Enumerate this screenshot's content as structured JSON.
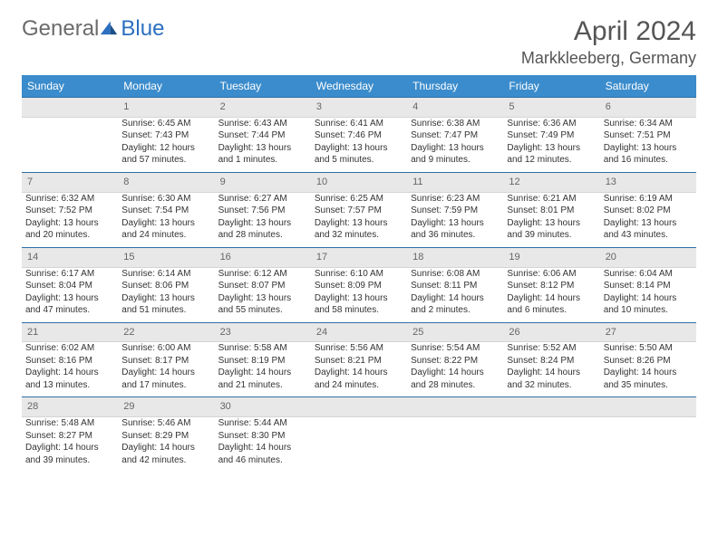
{
  "logo": {
    "part1": "General",
    "part2": "Blue"
  },
  "title": "April 2024",
  "location": "Markkleeberg, Germany",
  "colors": {
    "header_bg": "#3b8ccc",
    "header_text": "#ffffff",
    "daynum_bg": "#e8e8e8",
    "daynum_text": "#666666",
    "daynum_border_top": "#2e6fa8",
    "body_text": "#333333",
    "title_text": "#555555",
    "logo_gray": "#6b6b6b",
    "logo_blue": "#2b6fbf"
  },
  "weekday_labels": [
    "Sunday",
    "Monday",
    "Tuesday",
    "Wednesday",
    "Thursday",
    "Friday",
    "Saturday"
  ],
  "weeks": [
    [
      {
        "num": "",
        "lines": []
      },
      {
        "num": "1",
        "lines": [
          "Sunrise: 6:45 AM",
          "Sunset: 7:43 PM",
          "Daylight: 12 hours",
          "and 57 minutes."
        ]
      },
      {
        "num": "2",
        "lines": [
          "Sunrise: 6:43 AM",
          "Sunset: 7:44 PM",
          "Daylight: 13 hours",
          "and 1 minutes."
        ]
      },
      {
        "num": "3",
        "lines": [
          "Sunrise: 6:41 AM",
          "Sunset: 7:46 PM",
          "Daylight: 13 hours",
          "and 5 minutes."
        ]
      },
      {
        "num": "4",
        "lines": [
          "Sunrise: 6:38 AM",
          "Sunset: 7:47 PM",
          "Daylight: 13 hours",
          "and 9 minutes."
        ]
      },
      {
        "num": "5",
        "lines": [
          "Sunrise: 6:36 AM",
          "Sunset: 7:49 PM",
          "Daylight: 13 hours",
          "and 12 minutes."
        ]
      },
      {
        "num": "6",
        "lines": [
          "Sunrise: 6:34 AM",
          "Sunset: 7:51 PM",
          "Daylight: 13 hours",
          "and 16 minutes."
        ]
      }
    ],
    [
      {
        "num": "7",
        "lines": [
          "Sunrise: 6:32 AM",
          "Sunset: 7:52 PM",
          "Daylight: 13 hours",
          "and 20 minutes."
        ]
      },
      {
        "num": "8",
        "lines": [
          "Sunrise: 6:30 AM",
          "Sunset: 7:54 PM",
          "Daylight: 13 hours",
          "and 24 minutes."
        ]
      },
      {
        "num": "9",
        "lines": [
          "Sunrise: 6:27 AM",
          "Sunset: 7:56 PM",
          "Daylight: 13 hours",
          "and 28 minutes."
        ]
      },
      {
        "num": "10",
        "lines": [
          "Sunrise: 6:25 AM",
          "Sunset: 7:57 PM",
          "Daylight: 13 hours",
          "and 32 minutes."
        ]
      },
      {
        "num": "11",
        "lines": [
          "Sunrise: 6:23 AM",
          "Sunset: 7:59 PM",
          "Daylight: 13 hours",
          "and 36 minutes."
        ]
      },
      {
        "num": "12",
        "lines": [
          "Sunrise: 6:21 AM",
          "Sunset: 8:01 PM",
          "Daylight: 13 hours",
          "and 39 minutes."
        ]
      },
      {
        "num": "13",
        "lines": [
          "Sunrise: 6:19 AM",
          "Sunset: 8:02 PM",
          "Daylight: 13 hours",
          "and 43 minutes."
        ]
      }
    ],
    [
      {
        "num": "14",
        "lines": [
          "Sunrise: 6:17 AM",
          "Sunset: 8:04 PM",
          "Daylight: 13 hours",
          "and 47 minutes."
        ]
      },
      {
        "num": "15",
        "lines": [
          "Sunrise: 6:14 AM",
          "Sunset: 8:06 PM",
          "Daylight: 13 hours",
          "and 51 minutes."
        ]
      },
      {
        "num": "16",
        "lines": [
          "Sunrise: 6:12 AM",
          "Sunset: 8:07 PM",
          "Daylight: 13 hours",
          "and 55 minutes."
        ]
      },
      {
        "num": "17",
        "lines": [
          "Sunrise: 6:10 AM",
          "Sunset: 8:09 PM",
          "Daylight: 13 hours",
          "and 58 minutes."
        ]
      },
      {
        "num": "18",
        "lines": [
          "Sunrise: 6:08 AM",
          "Sunset: 8:11 PM",
          "Daylight: 14 hours",
          "and 2 minutes."
        ]
      },
      {
        "num": "19",
        "lines": [
          "Sunrise: 6:06 AM",
          "Sunset: 8:12 PM",
          "Daylight: 14 hours",
          "and 6 minutes."
        ]
      },
      {
        "num": "20",
        "lines": [
          "Sunrise: 6:04 AM",
          "Sunset: 8:14 PM",
          "Daylight: 14 hours",
          "and 10 minutes."
        ]
      }
    ],
    [
      {
        "num": "21",
        "lines": [
          "Sunrise: 6:02 AM",
          "Sunset: 8:16 PM",
          "Daylight: 14 hours",
          "and 13 minutes."
        ]
      },
      {
        "num": "22",
        "lines": [
          "Sunrise: 6:00 AM",
          "Sunset: 8:17 PM",
          "Daylight: 14 hours",
          "and 17 minutes."
        ]
      },
      {
        "num": "23",
        "lines": [
          "Sunrise: 5:58 AM",
          "Sunset: 8:19 PM",
          "Daylight: 14 hours",
          "and 21 minutes."
        ]
      },
      {
        "num": "24",
        "lines": [
          "Sunrise: 5:56 AM",
          "Sunset: 8:21 PM",
          "Daylight: 14 hours",
          "and 24 minutes."
        ]
      },
      {
        "num": "25",
        "lines": [
          "Sunrise: 5:54 AM",
          "Sunset: 8:22 PM",
          "Daylight: 14 hours",
          "and 28 minutes."
        ]
      },
      {
        "num": "26",
        "lines": [
          "Sunrise: 5:52 AM",
          "Sunset: 8:24 PM",
          "Daylight: 14 hours",
          "and 32 minutes."
        ]
      },
      {
        "num": "27",
        "lines": [
          "Sunrise: 5:50 AM",
          "Sunset: 8:26 PM",
          "Daylight: 14 hours",
          "and 35 minutes."
        ]
      }
    ],
    [
      {
        "num": "28",
        "lines": [
          "Sunrise: 5:48 AM",
          "Sunset: 8:27 PM",
          "Daylight: 14 hours",
          "and 39 minutes."
        ]
      },
      {
        "num": "29",
        "lines": [
          "Sunrise: 5:46 AM",
          "Sunset: 8:29 PM",
          "Daylight: 14 hours",
          "and 42 minutes."
        ]
      },
      {
        "num": "30",
        "lines": [
          "Sunrise: 5:44 AM",
          "Sunset: 8:30 PM",
          "Daylight: 14 hours",
          "and 46 minutes."
        ]
      },
      {
        "num": "",
        "lines": []
      },
      {
        "num": "",
        "lines": []
      },
      {
        "num": "",
        "lines": []
      },
      {
        "num": "",
        "lines": []
      }
    ]
  ]
}
